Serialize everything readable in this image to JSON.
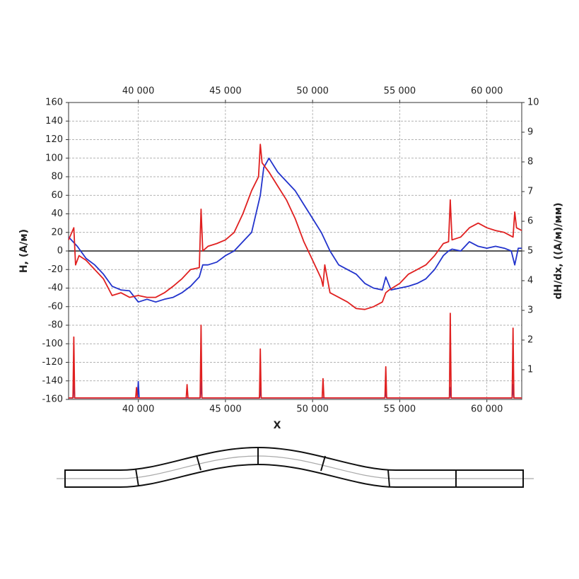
{
  "chart_data": {
    "type": "line",
    "x_label": "X",
    "y_label": "H, (А/м)",
    "y2_label": "dH/dx, ((А/м)/мм)",
    "xlim": [
      36000,
      62000
    ],
    "xticks": [
      {
        "value": 40000,
        "label": "40 000"
      },
      {
        "value": 45000,
        "label": "45 000"
      },
      {
        "value": 50000,
        "label": "50 000"
      },
      {
        "value": 55000,
        "label": "55 000"
      },
      {
        "value": 60000,
        "label": "60 000"
      }
    ],
    "ylim": [
      -160,
      160
    ],
    "yticks": [
      -160,
      -140,
      -120,
      -100,
      -80,
      -60,
      -40,
      -20,
      0,
      20,
      40,
      60,
      80,
      100,
      120,
      140,
      160
    ],
    "y2lim": [
      0,
      10
    ],
    "y2ticks": [
      1,
      2,
      3,
      4,
      5,
      6,
      7,
      8,
      9,
      10
    ],
    "grid": true,
    "series": [
      {
        "color": "#2233cc",
        "x": [
          36000,
          36500,
          37000,
          37500,
          38000,
          38500,
          39000,
          39500,
          40000,
          40500,
          41000,
          41500,
          42000,
          42500,
          43000,
          43500,
          43700,
          44000,
          44500,
          45000,
          45500,
          46000,
          46500,
          47000,
          47200,
          47500,
          48000,
          48500,
          49000,
          49500,
          50000,
          50500,
          51000,
          51500,
          52000,
          52500,
          53000,
          53500,
          54000,
          54200,
          54500,
          55000,
          55500,
          56000,
          56500,
          57000,
          57500,
          57800,
          58000,
          58500,
          59000,
          59500,
          60000,
          60500,
          61000,
          61400,
          61600,
          61800,
          62000
        ],
        "values": [
          15,
          5,
          -8,
          -15,
          -25,
          -38,
          -42,
          -43,
          -55,
          -52,
          -55,
          -52,
          -50,
          -45,
          -38,
          -28,
          -15,
          -15,
          -12,
          -5,
          0,
          10,
          20,
          60,
          90,
          100,
          85,
          75,
          65,
          50,
          35,
          20,
          0,
          -15,
          -20,
          -25,
          -35,
          -40,
          -42,
          -28,
          -42,
          -40,
          -38,
          -35,
          -30,
          -20,
          -5,
          0,
          2,
          0,
          10,
          5,
          3,
          5,
          3,
          0,
          -15,
          3,
          3
        ]
      },
      {
        "color": "#e02020",
        "x": [
          36000,
          36300,
          36400,
          36600,
          37000,
          37500,
          38000,
          38500,
          39000,
          39500,
          40000,
          40500,
          41000,
          41500,
          42000,
          42500,
          43000,
          43500,
          43600,
          43700,
          44000,
          44500,
          45000,
          45500,
          46000,
          46500,
          46900,
          47000,
          47100,
          47500,
          48000,
          48500,
          49000,
          49500,
          50000,
          50500,
          50600,
          50700,
          51000,
          51500,
          52000,
          52500,
          53000,
          53500,
          54000,
          54200,
          54400,
          55000,
          55500,
          56000,
          56500,
          57000,
          57500,
          57800,
          57900,
          58000,
          58500,
          59000,
          59500,
          60000,
          60500,
          61000,
          61500,
          61600,
          61700,
          62000
        ],
        "values": [
          12,
          25,
          -15,
          -5,
          -10,
          -20,
          -30,
          -48,
          -45,
          -50,
          -48,
          -50,
          -50,
          -45,
          -38,
          -30,
          -20,
          -18,
          45,
          0,
          5,
          8,
          12,
          20,
          40,
          65,
          80,
          115,
          95,
          85,
          70,
          55,
          35,
          10,
          -10,
          -30,
          -38,
          -15,
          -45,
          -50,
          -55,
          -62,
          -63,
          -60,
          -55,
          -45,
          -42,
          -35,
          -25,
          -20,
          -15,
          -5,
          8,
          10,
          55,
          12,
          15,
          25,
          30,
          25,
          22,
          20,
          15,
          42,
          25,
          22
        ]
      },
      {
        "color": "#2233cc",
        "axis": "y2",
        "x": [
          36000,
          36250,
          36300,
          36350,
          39950,
          40000,
          40050,
          43550,
          43600,
          43650,
          46950,
          47000,
          47050,
          54150,
          54200,
          54250,
          57850,
          57900,
          57950,
          61450,
          61500,
          61550,
          62000
        ],
        "values": [
          0.05,
          0.05,
          0.7,
          0.05,
          0.05,
          0.6,
          0.05,
          0.05,
          0.6,
          0.05,
          0.05,
          0.4,
          0.05,
          0.05,
          0.3,
          0.05,
          0.05,
          0.4,
          0.05,
          0.05,
          0.5,
          0.05,
          0.05
        ]
      },
      {
        "color": "#e02020",
        "axis": "y2",
        "x": [
          36000,
          36250,
          36300,
          36350,
          39850,
          39900,
          39950,
          42750,
          42800,
          42850,
          43550,
          43600,
          43650,
          46950,
          47000,
          47050,
          50550,
          50600,
          50650,
          54150,
          54200,
          54250,
          57850,
          57900,
          57950,
          61450,
          61500,
          61550,
          62000
        ],
        "values": [
          0.05,
          0.05,
          2.1,
          0.05,
          0.05,
          0.4,
          0.05,
          0.05,
          0.5,
          0.05,
          0.05,
          2.5,
          0.05,
          0.05,
          1.7,
          0.05,
          0.05,
          0.7,
          0.05,
          0.05,
          1.1,
          0.05,
          0.05,
          2.9,
          0.05,
          0.05,
          2.4,
          0.05,
          0.05
        ]
      }
    ]
  }
}
